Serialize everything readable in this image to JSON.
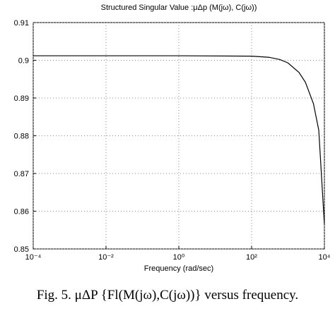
{
  "chart_data": {
    "type": "line",
    "title": "Structured Singular Value :μΔp (M(jω), C(jω))",
    "x_label": "Frequency (rad/sec)",
    "caption": "Fig. 5.  μΔP {Fl(M(jω),C(jω))}  versus frequency.",
    "x": [
      0.0001,
      0.01,
      1,
      100,
      300,
      600,
      1000,
      2000,
      3000,
      5000,
      7000,
      10000
    ],
    "series": [
      {
        "color": "#000000",
        "values": [
          0.9012,
          0.9012,
          0.9012,
          0.9011,
          0.9008,
          0.9002,
          0.8993,
          0.8968,
          0.8942,
          0.8885,
          0.8815,
          0.8565
        ]
      }
    ],
    "xscale": "log",
    "xlim": [
      0.0001,
      10000
    ],
    "xticks": [
      {
        "value": 0.0001,
        "label": "10⁻⁴"
      },
      {
        "value": 0.01,
        "label": "10⁻²"
      },
      {
        "value": 1,
        "label": "10⁰"
      },
      {
        "value": 100,
        "label": "10²"
      },
      {
        "value": 10000,
        "label": "10⁴"
      }
    ],
    "ylim": [
      0.85,
      0.91
    ],
    "yticks": [
      0.85,
      0.86,
      0.87,
      0.88,
      0.89,
      0.9,
      0.91
    ],
    "grid": true
  }
}
